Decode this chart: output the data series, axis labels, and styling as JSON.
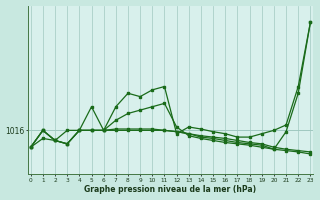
{
  "bg_color": "#c8e8e0",
  "plot_bg_color": "#d8f0ec",
  "grid_color": "#a0c8c0",
  "line_color": "#1a6b1a",
  "xlabel": "Graphe pression niveau de la mer (hPa)",
  "ytick_label": "1016",
  "ytick_val": 1016,
  "xlim": [
    -0.2,
    23.2
  ],
  "ylim": [
    1009.5,
    1034.5
  ],
  "line_a_x": [
    0,
    1,
    2,
    3,
    4,
    5,
    6,
    7,
    8,
    9,
    10,
    11,
    12,
    13,
    14,
    15,
    16,
    17,
    18,
    19,
    20,
    21,
    22,
    23
  ],
  "line_a_y": [
    1013.5,
    1016.0,
    1014.5,
    1014.0,
    1016.0,
    1019.5,
    1016.0,
    1019.5,
    1021.5,
    1021.0,
    1022.0,
    1022.5,
    1015.5,
    1016.5,
    1016.2,
    1015.8,
    1015.5,
    1015.0,
    1015.0,
    1015.5,
    1016.0,
    1016.8,
    1022.5,
    1032.0
  ],
  "line_b_x": [
    0,
    1,
    2,
    3,
    4,
    5,
    6,
    7,
    8,
    9,
    10,
    11,
    12,
    13,
    14,
    15,
    16,
    17,
    18,
    19,
    20,
    21,
    22,
    23
  ],
  "line_b_y": [
    1013.5,
    1016.0,
    1014.5,
    1014.0,
    1016.0,
    1016.0,
    1016.0,
    1017.5,
    1018.5,
    1019.0,
    1019.5,
    1020.0,
    1016.5,
    1015.2,
    1014.8,
    1014.5,
    1014.2,
    1014.0,
    1013.8,
    1013.5,
    1013.2,
    1015.8,
    1021.5,
    1032.0
  ],
  "line_c_x": [
    0,
    1,
    2,
    3,
    4,
    5,
    6,
    7,
    8,
    9,
    10,
    11,
    12,
    13,
    14,
    15,
    16,
    17,
    18,
    19,
    20,
    21,
    22,
    23
  ],
  "line_c_y": [
    1013.5,
    1014.8,
    1014.5,
    1016.0,
    1016.0,
    1016.0,
    1016.0,
    1016.2,
    1016.2,
    1016.2,
    1016.2,
    1016.0,
    1015.8,
    1015.5,
    1015.2,
    1015.0,
    1014.8,
    1014.5,
    1014.2,
    1014.0,
    1013.5,
    1013.2,
    1013.0,
    1012.8
  ],
  "line_d_x": [
    0,
    1,
    2,
    3,
    4,
    5,
    6,
    7,
    8,
    9,
    10,
    11,
    12,
    13,
    14,
    15,
    16,
    17,
    18,
    19,
    20,
    21,
    22,
    23
  ],
  "line_d_y": [
    1013.5,
    1016.0,
    1014.5,
    1014.0,
    1016.0,
    1016.0,
    1016.0,
    1016.0,
    1016.0,
    1016.0,
    1016.0,
    1016.0,
    1015.8,
    1015.5,
    1015.0,
    1014.8,
    1014.5,
    1014.2,
    1014.0,
    1013.8,
    1013.2,
    1013.0,
    1012.8,
    1012.5
  ]
}
